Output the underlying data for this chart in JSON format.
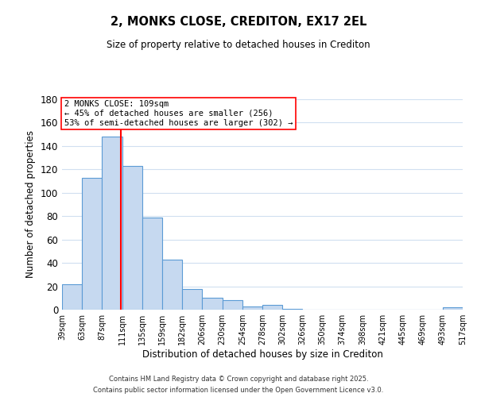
{
  "title": "2, MONKS CLOSE, CREDITON, EX17 2EL",
  "subtitle": "Size of property relative to detached houses in Crediton",
  "bar_values": [
    22,
    113,
    148,
    123,
    79,
    43,
    18,
    10,
    8,
    3,
    4,
    1,
    0,
    0,
    0,
    0,
    0,
    0,
    0,
    2
  ],
  "bar_labels": [
    "39sqm",
    "63sqm",
    "87sqm",
    "111sqm",
    "135sqm",
    "159sqm",
    "182sqm",
    "206sqm",
    "230sqm",
    "254sqm",
    "278sqm",
    "302sqm",
    "326sqm",
    "350sqm",
    "374sqm",
    "398sqm",
    "421sqm",
    "445sqm",
    "469sqm",
    "493sqm",
    "517sqm"
  ],
  "bar_color": "#c6d9f0",
  "bar_edge_color": "#5b9bd5",
  "xlabel": "Distribution of detached houses by size in Crediton",
  "ylabel": "Number of detached properties",
  "ylim": [
    0,
    180
  ],
  "yticks": [
    0,
    20,
    40,
    60,
    80,
    100,
    120,
    140,
    160,
    180
  ],
  "annotation_title": "2 MONKS CLOSE: 109sqm",
  "annotation_line1": "← 45% of detached houses are smaller (256)",
  "annotation_line2": "53% of semi-detached houses are larger (302) →",
  "footer1": "Contains HM Land Registry data © Crown copyright and database right 2025.",
  "footer2": "Contains public sector information licensed under the Open Government Licence v3.0.",
  "background_color": "#ffffff",
  "grid_color": "#d0dff0"
}
